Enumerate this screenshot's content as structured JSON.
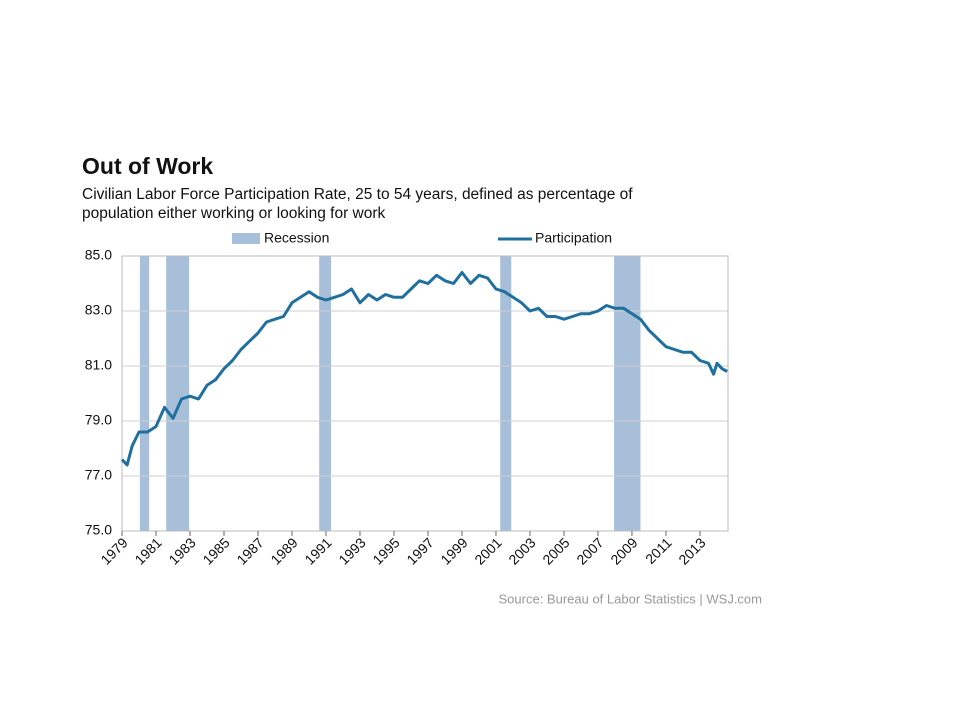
{
  "chart_data": {
    "type": "line",
    "title": "Out of Work",
    "subtitle": [
      "Civilian Labor Force Participation Rate, 25 to 54 years, defined as percentage of",
      "population either working or looking for work"
    ],
    "source": "Source: Bureau of Labor Statistics  |  WSJ.com",
    "recessions": {
      "name": "Recession",
      "color": "#a7bfd8",
      "periods": [
        [
          1980.05,
          1980.6
        ],
        [
          1981.6,
          1982.95
        ],
        [
          1990.6,
          1991.3
        ],
        [
          2001.25,
          2001.9
        ],
        [
          2007.95,
          2009.5
        ]
      ]
    },
    "series": [
      {
        "name": "Participation",
        "color": "#1f6f9f",
        "x": [
          1979.0,
          1979.3,
          1979.6,
          1980.0,
          1980.5,
          1981.0,
          1981.5,
          1982.0,
          1982.5,
          1983.0,
          1983.5,
          1984.0,
          1984.5,
          1985.0,
          1985.5,
          1986.0,
          1986.5,
          1987.0,
          1987.5,
          1988.0,
          1988.5,
          1989.0,
          1989.5,
          1990.0,
          1990.5,
          1991.0,
          1991.5,
          1992.0,
          1992.5,
          1993.0,
          1993.5,
          1994.0,
          1994.5,
          1995.0,
          1995.5,
          1996.0,
          1996.5,
          1997.0,
          1997.5,
          1998.0,
          1998.5,
          1999.0,
          1999.5,
          2000.0,
          2000.5,
          2001.0,
          2001.5,
          2002.0,
          2002.5,
          2003.0,
          2003.5,
          2004.0,
          2004.5,
          2005.0,
          2005.5,
          2006.0,
          2006.5,
          2007.0,
          2007.5,
          2008.0,
          2008.5,
          2009.0,
          2009.5,
          2010.0,
          2010.5,
          2011.0,
          2011.5,
          2012.0,
          2012.5,
          2013.0,
          2013.5,
          2013.8,
          2014.0,
          2014.3,
          2014.6
        ],
        "values": [
          77.6,
          77.4,
          78.1,
          78.6,
          78.6,
          78.8,
          79.5,
          79.1,
          79.8,
          79.9,
          79.8,
          80.3,
          80.5,
          80.9,
          81.2,
          81.6,
          81.9,
          82.2,
          82.6,
          82.7,
          82.8,
          83.3,
          83.5,
          83.7,
          83.5,
          83.4,
          83.5,
          83.6,
          83.8,
          83.3,
          83.6,
          83.4,
          83.6,
          83.5,
          83.5,
          83.8,
          84.1,
          84.0,
          84.3,
          84.1,
          84.0,
          84.4,
          84.0,
          84.3,
          84.2,
          83.8,
          83.7,
          83.5,
          83.3,
          83.0,
          83.1,
          82.8,
          82.8,
          82.7,
          82.8,
          82.9,
          82.9,
          83.0,
          83.2,
          83.1,
          83.1,
          82.9,
          82.7,
          82.3,
          82.0,
          81.7,
          81.6,
          81.5,
          81.5,
          81.2,
          81.1,
          80.7,
          81.1,
          80.9,
          80.8
        ]
      }
    ],
    "xlim": [
      1979,
      2014.65
    ],
    "xticks": [
      1979,
      1981,
      1983,
      1985,
      1987,
      1989,
      1991,
      1993,
      1995,
      1997,
      1999,
      2001,
      2003,
      2005,
      2007,
      2009,
      2011,
      2013
    ],
    "ylim": [
      75,
      85
    ],
    "yticks": [
      {
        "value": 75,
        "label": "75.0"
      },
      {
        "value": 77,
        "label": "77.0"
      },
      {
        "value": 79,
        "label": "79.0"
      },
      {
        "value": 81,
        "label": "81.0"
      },
      {
        "value": 83,
        "label": "83.0"
      },
      {
        "value": 85,
        "label": "85.0"
      }
    ],
    "grid": true
  }
}
